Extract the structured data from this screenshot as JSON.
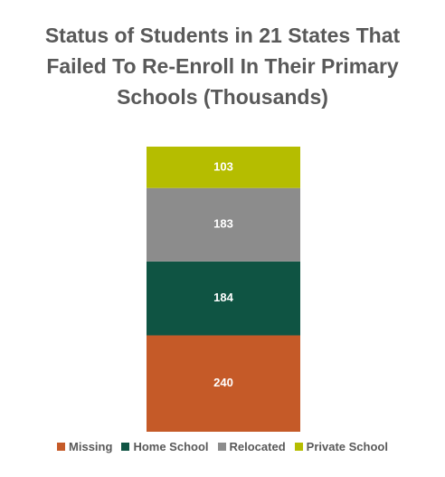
{
  "chart_data": {
    "type": "stacked_bar",
    "title": "Status of Students in 21 States That Failed To Re-Enroll In Their Primary Schools (Thousands)",
    "categories": [
      null
    ],
    "series": [
      {
        "name": "Missing",
        "color": "#c55a28",
        "values": [
          240
        ]
      },
      {
        "name": "Home School",
        "color": "#0f5443",
        "values": [
          184
        ]
      },
      {
        "name": "Relocated",
        "color": "#8c8c8c",
        "values": [
          183
        ]
      },
      {
        "name": "Private School",
        "color": "#b5bd00",
        "values": [
          103
        ]
      }
    ],
    "legend": "bottom"
  }
}
